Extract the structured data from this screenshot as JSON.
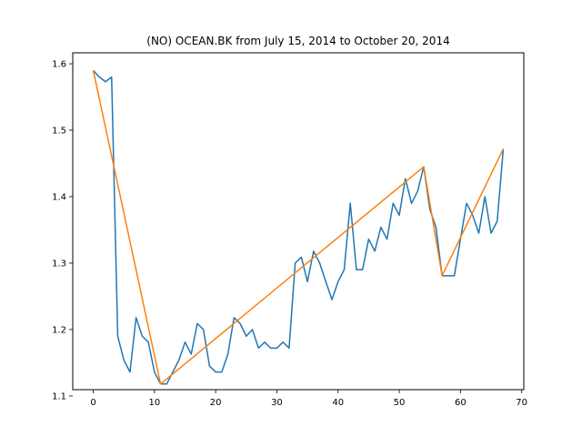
{
  "chart_data": {
    "type": "line",
    "title": "(NO) OCEAN.BK from July 15, 2014 to October 20, 2014",
    "xlabel": "",
    "ylabel": "",
    "xlim": [
      -3.35,
      70.35
    ],
    "ylim": [
      1.1095,
      1.6165
    ],
    "x_ticks": [
      0,
      10,
      20,
      30,
      40,
      50,
      60,
      70
    ],
    "y_ticks": [
      1.1,
      1.2,
      1.3,
      1.4,
      1.5,
      1.6
    ],
    "grid": false,
    "legend": "none",
    "series": [
      {
        "color": "#1f77b4",
        "x": [
          0,
          1,
          2,
          3,
          4,
          5,
          6,
          7,
          8,
          9,
          10,
          11,
          12,
          13,
          14,
          15,
          16,
          17,
          18,
          19,
          20,
          21,
          22,
          23,
          24,
          25,
          26,
          27,
          28,
          29,
          30,
          31,
          32,
          33,
          34,
          35,
          36,
          37,
          38,
          39,
          40,
          41,
          42,
          43,
          44,
          45,
          46,
          47,
          48,
          49,
          50,
          51,
          52,
          53,
          54,
          55,
          56,
          57,
          58,
          59,
          60,
          61,
          62,
          63,
          64,
          65,
          66,
          67
        ],
        "y": [
          1.59,
          1.58,
          1.573,
          1.58,
          1.19,
          1.154,
          1.136,
          1.218,
          1.19,
          1.181,
          1.136,
          1.118,
          1.118,
          1.136,
          1.154,
          1.181,
          1.163,
          1.209,
          1.2,
          1.145,
          1.136,
          1.136,
          1.163,
          1.218,
          1.209,
          1.19,
          1.2,
          1.172,
          1.181,
          1.172,
          1.172,
          1.181,
          1.172,
          1.3,
          1.309,
          1.272,
          1.318,
          1.3,
          1.272,
          1.245,
          1.272,
          1.29,
          1.39,
          1.29,
          1.29,
          1.336,
          1.318,
          1.354,
          1.336,
          1.39,
          1.372,
          1.427,
          1.39,
          1.408,
          1.445,
          1.381,
          1.354,
          1.281,
          1.281,
          1.281,
          1.336,
          1.39,
          1.372,
          1.345,
          1.4,
          1.345,
          1.363,
          1.472
        ]
      },
      {
        "color": "#ff7f0e",
        "x": [
          0,
          11,
          54,
          57,
          67
        ],
        "y": [
          1.59,
          1.118,
          1.445,
          1.281,
          1.472
        ]
      }
    ]
  }
}
